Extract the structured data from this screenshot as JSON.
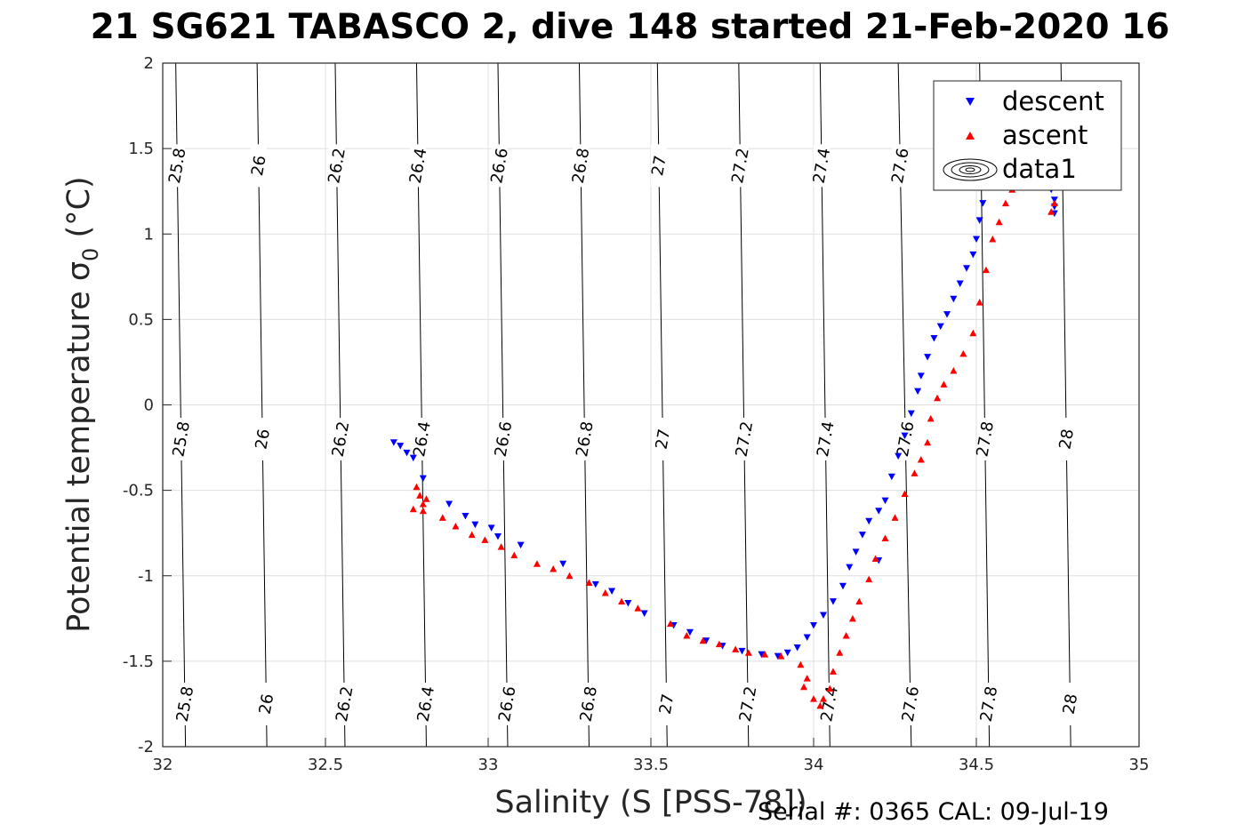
{
  "title": "21 SG621 TABASCO 2, dive 148 started 21-Feb-2020 16",
  "footer": "Serial #: 0365  CAL: 09-Jul-19",
  "chart_data": {
    "type": "scatter",
    "title": "21 SG621 TABASCO 2, dive 148 started 21-Feb-2020 16",
    "xlabel": "Salinity (S [PSS-78])",
    "ylabel": "Potential temperature σ0 (°C)",
    "xlim": [
      32,
      35
    ],
    "ylim": [
      -2,
      2
    ],
    "xticks": [
      "32",
      "32.5",
      "33",
      "33.5",
      "34",
      "34.5",
      "35"
    ],
    "yticks": [
      "-2",
      "-1.5",
      "-1",
      "-0.5",
      "0",
      "0.5",
      "1",
      "1.5",
      "2"
    ],
    "grid": true,
    "legend_position": "top-right",
    "legend": [
      "descent",
      "ascent",
      "data1"
    ],
    "contours": [
      {
        "label": "25.8",
        "s_at_tmin": 32.07,
        "s_at_tmax": 32.04
      },
      {
        "label": "26",
        "s_at_tmin": 32.32,
        "s_at_tmax": 32.29
      },
      {
        "label": "26.2",
        "s_at_tmin": 32.56,
        "s_at_tmax": 32.53
      },
      {
        "label": "26.4",
        "s_at_tmin": 32.81,
        "s_at_tmax": 32.78
      },
      {
        "label": "26.6",
        "s_at_tmin": 33.06,
        "s_at_tmax": 33.03
      },
      {
        "label": "26.8",
        "s_at_tmin": 33.31,
        "s_at_tmax": 33.28
      },
      {
        "label": "27",
        "s_at_tmin": 33.55,
        "s_at_tmax": 33.52
      },
      {
        "label": "27.2",
        "s_at_tmin": 33.8,
        "s_at_tmax": 33.77
      },
      {
        "label": "27.4",
        "s_at_tmin": 34.05,
        "s_at_tmax": 34.02
      },
      {
        "label": "27.6",
        "s_at_tmin": 34.3,
        "s_at_tmax": 34.26
      },
      {
        "label": "27.8",
        "s_at_tmin": 34.54,
        "s_at_tmax": 34.51
      },
      {
        "label": "28",
        "s_at_tmin": 34.79,
        "s_at_tmax": 34.76
      }
    ],
    "series": [
      {
        "name": "descent",
        "color": "#0000ff",
        "marker": "triangle-down",
        "points": [
          [
            32.71,
            -0.22
          ],
          [
            32.73,
            -0.24
          ],
          [
            32.75,
            -0.28
          ],
          [
            32.77,
            -0.31
          ],
          [
            32.8,
            -0.43
          ],
          [
            32.88,
            -0.58
          ],
          [
            32.93,
            -0.65
          ],
          [
            32.96,
            -0.7
          ],
          [
            33.01,
            -0.72
          ],
          [
            33.03,
            -0.77
          ],
          [
            33.1,
            -0.82
          ],
          [
            33.23,
            -0.93
          ],
          [
            33.33,
            -1.05
          ],
          [
            33.38,
            -1.09
          ],
          [
            33.43,
            -1.16
          ],
          [
            33.48,
            -1.22
          ],
          [
            33.57,
            -1.29
          ],
          [
            33.62,
            -1.33
          ],
          [
            33.67,
            -1.38
          ],
          [
            33.72,
            -1.41
          ],
          [
            33.78,
            -1.44
          ],
          [
            33.84,
            -1.46
          ],
          [
            33.89,
            -1.47
          ],
          [
            33.92,
            -1.45
          ],
          [
            33.95,
            -1.42
          ],
          [
            33.98,
            -1.36
          ],
          [
            34.0,
            -1.29
          ],
          [
            34.03,
            -1.23
          ],
          [
            34.06,
            -1.15
          ],
          [
            34.09,
            -1.06
          ],
          [
            34.11,
            -0.95
          ],
          [
            34.13,
            -0.86
          ],
          [
            34.15,
            -0.76
          ],
          [
            34.17,
            -0.68
          ],
          [
            34.2,
            -0.62
          ],
          [
            34.2,
            -0.91
          ],
          [
            34.22,
            -0.56
          ],
          [
            34.24,
            -0.42
          ],
          [
            34.26,
            -0.3
          ],
          [
            34.28,
            -0.18
          ],
          [
            34.3,
            -0.05
          ],
          [
            34.32,
            0.08
          ],
          [
            34.33,
            0.17
          ],
          [
            34.35,
            0.28
          ],
          [
            34.37,
            0.39
          ],
          [
            34.39,
            0.46
          ],
          [
            34.41,
            0.53
          ],
          [
            34.43,
            0.62
          ],
          [
            34.45,
            0.71
          ],
          [
            34.47,
            0.8
          ],
          [
            34.49,
            0.88
          ],
          [
            34.5,
            0.97
          ],
          [
            34.51,
            1.08
          ],
          [
            34.52,
            1.18
          ],
          [
            34.5,
            1.28
          ],
          [
            34.74,
            1.16
          ],
          [
            34.74,
            1.2
          ],
          [
            34.73,
            1.26
          ],
          [
            34.74,
            1.12
          ]
        ]
      },
      {
        "name": "ascent",
        "color": "#ff0000",
        "marker": "triangle-up",
        "points": [
          [
            32.78,
            -0.48
          ],
          [
            32.79,
            -0.53
          ],
          [
            32.8,
            -0.58
          ],
          [
            32.8,
            -0.62
          ],
          [
            32.81,
            -0.55
          ],
          [
            32.77,
            -0.61
          ],
          [
            32.86,
            -0.66
          ],
          [
            32.9,
            -0.71
          ],
          [
            32.95,
            -0.76
          ],
          [
            32.99,
            -0.79
          ],
          [
            33.04,
            -0.83
          ],
          [
            33.08,
            -0.88
          ],
          [
            33.15,
            -0.93
          ],
          [
            33.2,
            -0.96
          ],
          [
            33.25,
            -1.0
          ],
          [
            33.31,
            -1.04
          ],
          [
            33.36,
            -1.1
          ],
          [
            33.41,
            -1.15
          ],
          [
            33.46,
            -1.19
          ],
          [
            33.56,
            -1.28
          ],
          [
            33.61,
            -1.35
          ],
          [
            33.66,
            -1.38
          ],
          [
            33.71,
            -1.4
          ],
          [
            33.76,
            -1.43
          ],
          [
            33.8,
            -1.45
          ],
          [
            33.85,
            -1.46
          ],
          [
            33.9,
            -1.47
          ],
          [
            33.96,
            -1.52
          ],
          [
            33.98,
            -1.6
          ],
          [
            33.97,
            -1.65
          ],
          [
            34.0,
            -1.72
          ],
          [
            34.02,
            -1.76
          ],
          [
            34.03,
            -1.72
          ],
          [
            34.05,
            -1.66
          ],
          [
            34.06,
            -1.56
          ],
          [
            34.08,
            -1.45
          ],
          [
            34.1,
            -1.35
          ],
          [
            34.12,
            -1.25
          ],
          [
            34.14,
            -1.15
          ],
          [
            34.17,
            -1.02
          ],
          [
            34.19,
            -0.9
          ],
          [
            34.22,
            -0.78
          ],
          [
            34.25,
            -0.66
          ],
          [
            34.28,
            -0.52
          ],
          [
            34.31,
            -0.4
          ],
          [
            34.33,
            -0.32
          ],
          [
            34.35,
            -0.22
          ],
          [
            34.36,
            -0.08
          ],
          [
            34.38,
            0.04
          ],
          [
            34.4,
            0.12
          ],
          [
            34.43,
            0.2
          ],
          [
            34.46,
            0.3
          ],
          [
            34.49,
            0.42
          ],
          [
            34.51,
            0.6
          ],
          [
            34.53,
            0.79
          ],
          [
            34.55,
            0.97
          ],
          [
            34.57,
            1.07
          ],
          [
            34.59,
            1.18
          ],
          [
            34.61,
            1.26
          ],
          [
            34.74,
            1.18
          ],
          [
            34.73,
            1.13
          ]
        ]
      }
    ]
  }
}
